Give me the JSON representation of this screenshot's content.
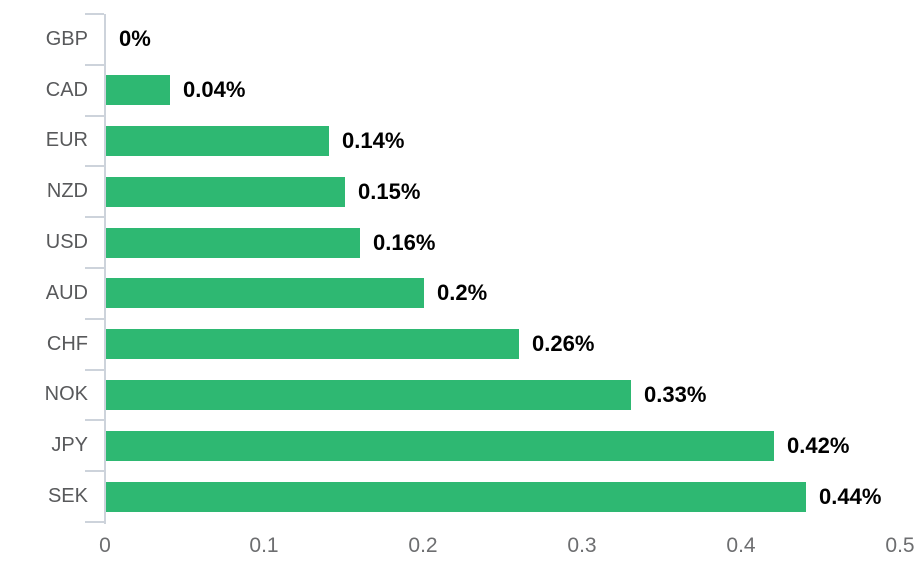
{
  "chart_data": {
    "type": "bar",
    "orientation": "horizontal",
    "title": "",
    "xlabel": "",
    "ylabel": "",
    "categories": [
      "GBP",
      "CAD",
      "EUR",
      "NZD",
      "USD",
      "AUD",
      "CHF",
      "NOK",
      "JPY",
      "SEK"
    ],
    "values": [
      0,
      0.04,
      0.14,
      0.15,
      0.16,
      0.2,
      0.26,
      0.33,
      0.42,
      0.44
    ],
    "value_labels": [
      "0%",
      "0.04%",
      "0.14%",
      "0.15%",
      "0.16%",
      "0.2%",
      "0.26%",
      "0.33%",
      "0.42%",
      "0.44%"
    ],
    "x_ticks": [
      "0",
      "0.1",
      "0.2",
      "0.3",
      "0.4",
      "0.5"
    ],
    "xlim": [
      0,
      0.5
    ],
    "grid": false,
    "legend": "none",
    "bar_color": "#2eb872",
    "axis_color": "#cdd3db",
    "category_label_color": "#58595b",
    "x_tick_label_color": "#6d6e70",
    "value_label_color": "#000000",
    "background": "#ffffff"
  }
}
